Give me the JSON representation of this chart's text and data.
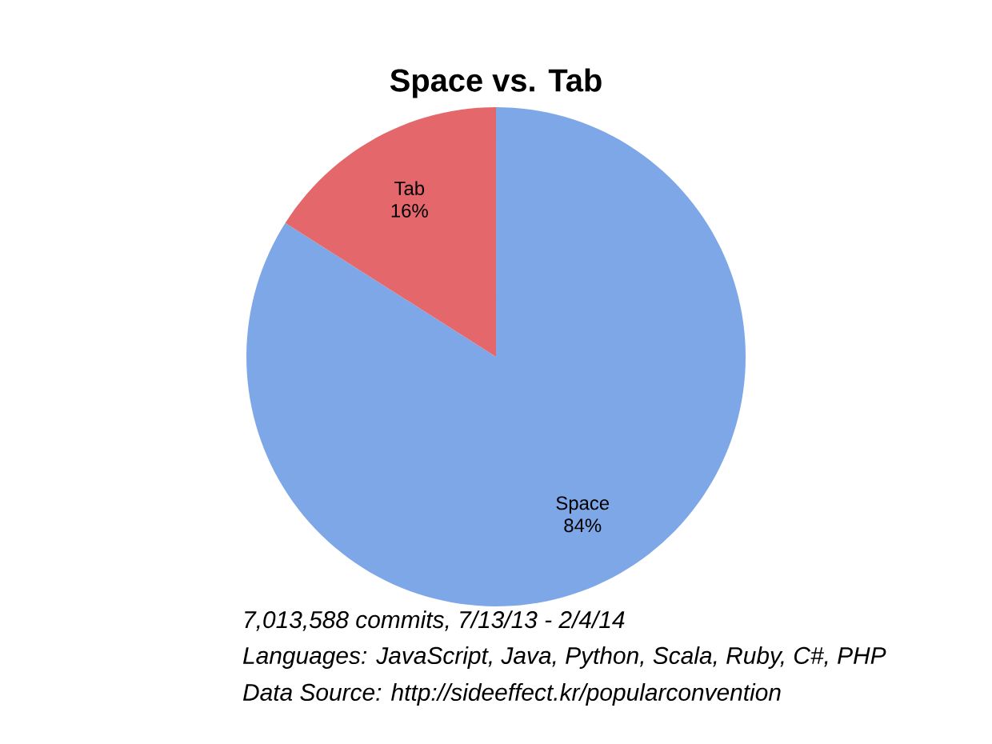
{
  "chart_data": {
    "type": "pie",
    "title": "Space vs. Tab",
    "categories": [
      "Space",
      "Tab"
    ],
    "values": [
      84,
      16
    ],
    "value_labels": [
      "84%",
      "16%"
    ],
    "colors": [
      "#7ea7e8",
      "#e4676b"
    ],
    "annotations": [
      "7,013,588 commits, 7/13/13 - 2/4/14",
      "Languages: JavaScript, Java, Python, Scala, Ruby, C#, PHP",
      "Data Source: http://sideeffect.kr/popularconvention"
    ]
  }
}
